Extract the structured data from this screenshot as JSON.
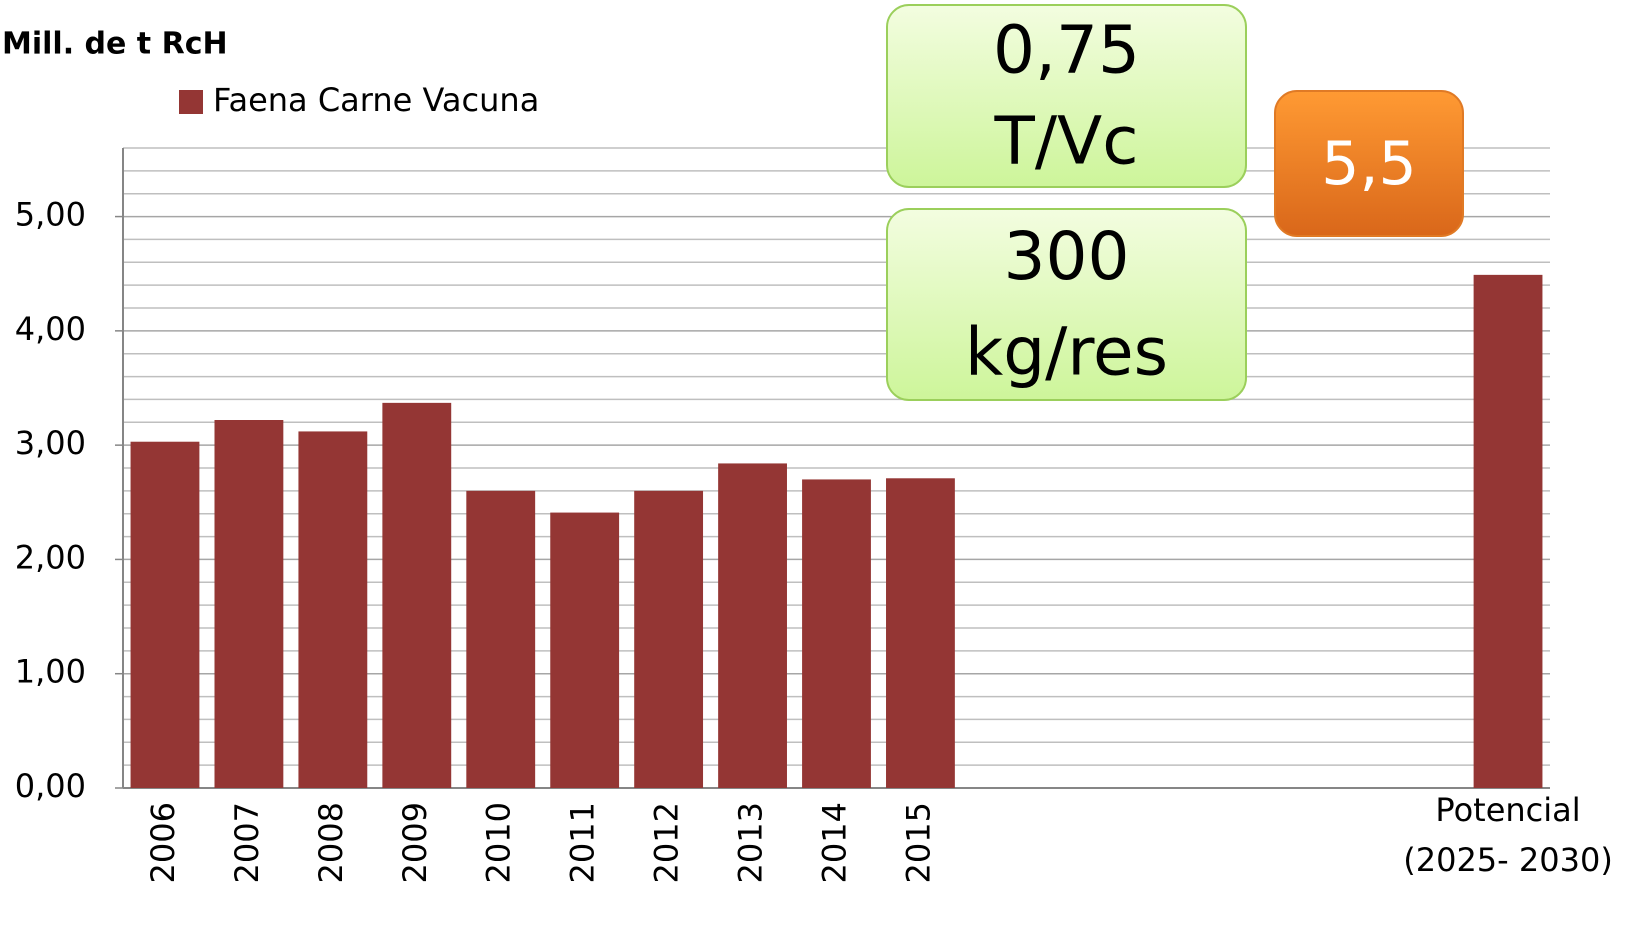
{
  "chart_data": {
    "type": "bar",
    "y_axis_label": "Mill. de t RcH",
    "series": [
      {
        "name": "Faena Carne Vacuna",
        "color": "#943634",
        "values": [
          3.03,
          3.22,
          3.12,
          3.37,
          2.6,
          2.41,
          2.6,
          2.84,
          2.7,
          2.71,
          null,
          null,
          null,
          null,
          null,
          null,
          4.49
        ]
      }
    ],
    "categories": [
      "2006",
      "2007",
      "2008",
      "2009",
      "2010",
      "2011",
      "2012",
      "2013",
      "2014",
      "2015",
      null,
      null,
      null,
      null,
      null,
      null,
      "Potencial\n(2025- 2030)"
    ],
    "ylim": [
      0,
      5.6
    ],
    "yticks": [
      {
        "value": 0,
        "label": "0,00"
      },
      {
        "value": 1,
        "label": "1,00"
      },
      {
        "value": 2,
        "label": "2,00"
      },
      {
        "value": 3,
        "label": "3,00"
      },
      {
        "value": 4,
        "label": "4,00"
      },
      {
        "value": 5,
        "label": "5,00"
      }
    ],
    "yminorticks": [
      0.2,
      0.4,
      0.6,
      0.8,
      1.2,
      1.4,
      1.6,
      1.8,
      2.2,
      2.4,
      2.6,
      2.8,
      3.2,
      3.4,
      3.6,
      3.8,
      4.2,
      4.4,
      4.6,
      4.8,
      5.2,
      5.4,
      5.6
    ],
    "grid": true,
    "legend": "top-left",
    "annotations": [
      {
        "lines": [
          "0,75",
          "T/Vc"
        ]
      },
      {
        "lines": [
          "300",
          "kg/res"
        ]
      },
      {
        "lines": [
          "5,5"
        ]
      }
    ]
  }
}
